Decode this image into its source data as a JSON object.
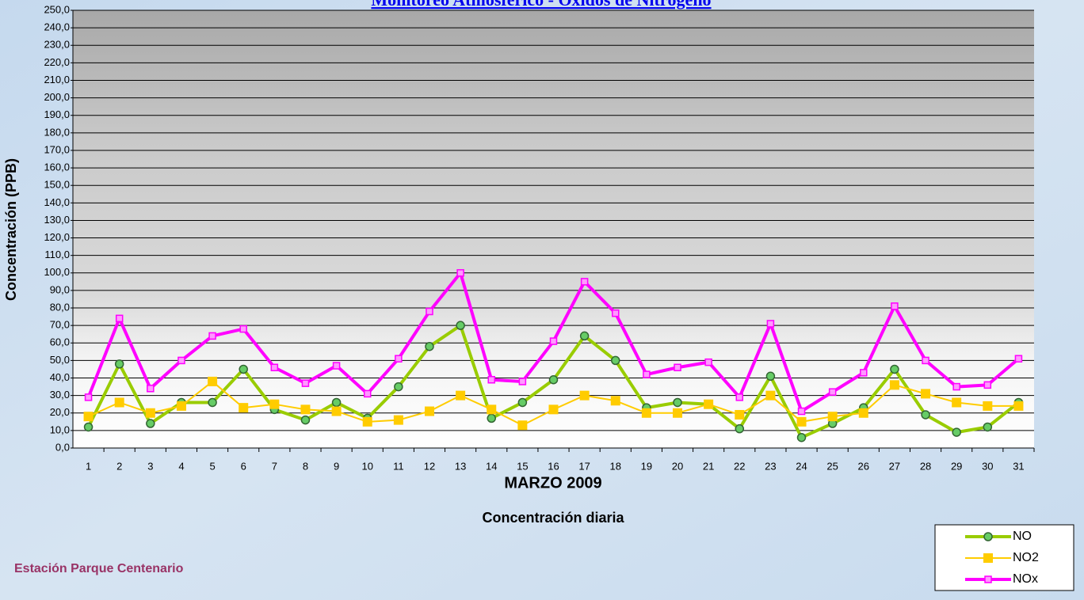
{
  "chart_data": {
    "type": "line",
    "title": "Monitoreo Atmosférico - Óxidos de Nitrógeno",
    "x_label": "MARZO 2009",
    "subtitle": "Concentración diaria",
    "y_label": "Concentración  (PPB)",
    "station": "Estación Parque Centenario",
    "categories": [
      "1",
      "2",
      "3",
      "4",
      "5",
      "6",
      "7",
      "8",
      "9",
      "10",
      "11",
      "12",
      "13",
      "14",
      "15",
      "16",
      "17",
      "18",
      "19",
      "20",
      "21",
      "22",
      "23",
      "24",
      "25",
      "26",
      "27",
      "28",
      "29",
      "30",
      "31"
    ],
    "series": [
      {
        "name": "NO",
        "color": "#99cc00",
        "values": [
          12,
          48,
          14,
          26,
          26,
          45,
          22,
          16,
          26,
          17,
          35,
          58,
          70,
          17,
          26,
          39,
          64,
          50,
          23,
          26,
          25,
          11,
          41,
          6,
          14,
          23,
          45,
          19,
          9,
          12,
          26
        ]
      },
      {
        "name": "NO2",
        "color": "#ffcc00",
        "values": [
          18,
          26,
          20,
          24,
          38,
          23,
          25,
          22,
          21,
          15,
          16,
          21,
          30,
          22,
          13,
          22,
          30,
          27,
          20,
          20,
          25,
          19,
          30,
          15,
          18,
          20,
          36,
          31,
          26,
          24,
          24
        ]
      },
      {
        "name": "NOx",
        "color": "#ff00ff",
        "values": [
          29,
          74,
          34,
          50,
          64,
          68,
          46,
          37,
          47,
          31,
          51,
          78,
          100,
          39,
          38,
          61,
          95,
          77,
          42,
          46,
          49,
          29,
          71,
          21,
          32,
          43,
          81,
          50,
          35,
          36,
          51
        ]
      }
    ],
    "ylim": [
      0,
      250
    ],
    "yticks": [
      {
        "value": 0,
        "label": "0,0"
      },
      {
        "value": 10,
        "label": "10,0"
      },
      {
        "value": 20,
        "label": "20,0"
      },
      {
        "value": 30,
        "label": "30,0"
      },
      {
        "value": 40,
        "label": "40,0"
      },
      {
        "value": 50,
        "label": "50,0"
      },
      {
        "value": 60,
        "label": "60,0"
      },
      {
        "value": 70,
        "label": "70,0"
      },
      {
        "value": 80,
        "label": "80,0"
      },
      {
        "value": 90,
        "label": "90,0"
      },
      {
        "value": 100,
        "label": "100,0"
      },
      {
        "value": 110,
        "label": "110,0"
      },
      {
        "value": 120,
        "label": "120,0"
      },
      {
        "value": 130,
        "label": "130,0"
      },
      {
        "value": 140,
        "label": "140,0"
      },
      {
        "value": 150,
        "label": "150,0"
      },
      {
        "value": 160,
        "label": "160,0"
      },
      {
        "value": 170,
        "label": "170,0"
      },
      {
        "value": 180,
        "label": "180,0"
      },
      {
        "value": 190,
        "label": "190,0"
      },
      {
        "value": 200,
        "label": "200,0"
      },
      {
        "value": 210,
        "label": "210,0"
      },
      {
        "value": 220,
        "label": "220,0"
      },
      {
        "value": 230,
        "label": "230,0"
      },
      {
        "value": 240,
        "label": "240,0"
      },
      {
        "value": 250,
        "label": "250,0"
      }
    ],
    "grid": true
  }
}
